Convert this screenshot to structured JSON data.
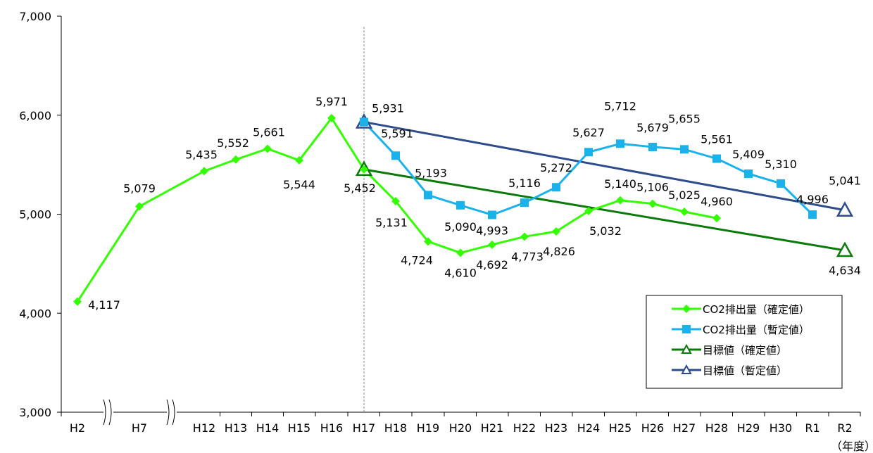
{
  "chart_data": {
    "type": "line",
    "x_categories": [
      "H2",
      "H7",
      "H12",
      "H13",
      "H14",
      "H15",
      "H16",
      "H17",
      "H18",
      "H19",
      "H20",
      "H21",
      "H22",
      "H23",
      "H24",
      "H25",
      "H26",
      "H27",
      "H28",
      "H29",
      "H30",
      "R1",
      "R2"
    ],
    "x_unit_label": "（年度）",
    "y_ticks": [
      "3,000",
      "4,000",
      "5,000",
      "6,000",
      "7,000"
    ],
    "ylim": [
      3000,
      7000
    ],
    "axis_break_after": [
      "H2",
      "H7"
    ],
    "reference_line_at": "H17",
    "series": [
      {
        "name": "CO2排出量（確定値）",
        "color": "#33ff00",
        "marker": "diamond",
        "points": [
          {
            "x": "H2",
            "y": 4117,
            "label": "4,117"
          },
          {
            "x": "H7",
            "y": 5079,
            "label": "5,079"
          },
          {
            "x": "H12",
            "y": 5435,
            "label": "5,435"
          },
          {
            "x": "H13",
            "y": 5552,
            "label": "5,552"
          },
          {
            "x": "H14",
            "y": 5661,
            "label": "5,661"
          },
          {
            "x": "H15",
            "y": 5544,
            "label": "5,544"
          },
          {
            "x": "H16",
            "y": 5971,
            "label": "5,971"
          },
          {
            "x": "H17",
            "y": 5452,
            "label": "5,452"
          },
          {
            "x": "H18",
            "y": 5131,
            "label": "5,131"
          },
          {
            "x": "H19",
            "y": 4724,
            "label": "4,724"
          },
          {
            "x": "H20",
            "y": 4610,
            "label": "4,610"
          },
          {
            "x": "H21",
            "y": 4692,
            "label": "4,692"
          },
          {
            "x": "H22",
            "y": 4773,
            "label": "4,773"
          },
          {
            "x": "H23",
            "y": 4826,
            "label": "4,826"
          },
          {
            "x": "H24",
            "y": 5032,
            "label": "5,032"
          },
          {
            "x": "H25",
            "y": 5140,
            "label": "5,140"
          },
          {
            "x": "H26",
            "y": 5106,
            "label": "5,106"
          },
          {
            "x": "H27",
            "y": 5025,
            "label": "5,025"
          },
          {
            "x": "H28",
            "y": 4960,
            "label": "4,960"
          }
        ]
      },
      {
        "name": "CO2排出量（暫定値）",
        "color": "#1ab2ea",
        "marker": "square",
        "points": [
          {
            "x": "H17",
            "y": 5931,
            "label": "5,931"
          },
          {
            "x": "H18",
            "y": 5591,
            "label": "5,591"
          },
          {
            "x": "H19",
            "y": 5193,
            "label": "5,193"
          },
          {
            "x": "H20",
            "y": 5090,
            "label": "5,090"
          },
          {
            "x": "H21",
            "y": 4993,
            "label": "4,993"
          },
          {
            "x": "H22",
            "y": 5116,
            "label": "5,116"
          },
          {
            "x": "H23",
            "y": 5272,
            "label": "5,272"
          },
          {
            "x": "H24",
            "y": 5627,
            "label": "5,627"
          },
          {
            "x": "H25",
            "y": 5712,
            "label": "5,712"
          },
          {
            "x": "H26",
            "y": 5679,
            "label": "5,679"
          },
          {
            "x": "H27",
            "y": 5655,
            "label": "5,655"
          },
          {
            "x": "H28",
            "y": 5561,
            "label": "5,561"
          },
          {
            "x": "H29",
            "y": 5409,
            "label": "5,409"
          },
          {
            "x": "H30",
            "y": 5310,
            "label": "5,310"
          },
          {
            "x": "R1",
            "y": 4996,
            "label": "4,996"
          }
        ]
      },
      {
        "name": "目標値（確定値）",
        "color": "#0a7a0a",
        "marker": "triangle",
        "points": [
          {
            "x": "H17",
            "y": 5452,
            "label": ""
          },
          {
            "x": "R2",
            "y": 4634,
            "label": "4,634"
          }
        ]
      },
      {
        "name": "目標値（暫定値）",
        "color": "#2e4c8c",
        "marker": "triangle",
        "points": [
          {
            "x": "H17",
            "y": 5931,
            "label": ""
          },
          {
            "x": "R2",
            "y": 5041,
            "label": "5,041"
          }
        ]
      }
    ],
    "legend": "right-lower"
  }
}
